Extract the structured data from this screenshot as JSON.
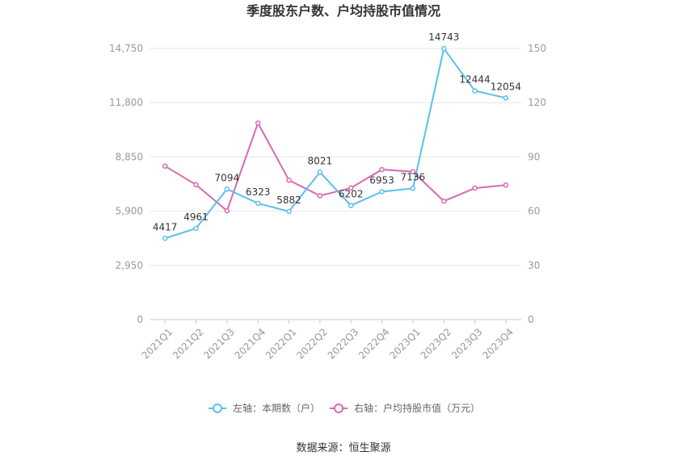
{
  "chart_data": {
    "type": "line",
    "title": "季度股东户数、户均持股市值情况",
    "categories": [
      "2021Q1",
      "2021Q2",
      "2021Q3",
      "2021Q4",
      "2022Q1",
      "2022Q2",
      "2022Q3",
      "2022Q4",
      "2023Q1",
      "2023Q2",
      "2023Q3",
      "2023Q4"
    ],
    "left_axis": {
      "min": 0,
      "max": 14750,
      "ticks": [
        "0",
        "2,950",
        "5,900",
        "8,850",
        "11,800",
        "14,750"
      ],
      "tick_values": [
        0,
        2950,
        5900,
        8850,
        11800,
        14750
      ]
    },
    "right_axis": {
      "min": 0,
      "max": 150,
      "ticks": [
        "0",
        "30",
        "60",
        "90",
        "120",
        "150"
      ],
      "tick_values": [
        0,
        30,
        60,
        90,
        120,
        150
      ]
    },
    "series": [
      {
        "name": "左轴：本期数（户）",
        "axis": "left",
        "color": "#5bc0eb",
        "values": [
          4417,
          4961,
          7094,
          6323,
          5882,
          8021,
          6202,
          6953,
          7136,
          14743,
          12444,
          12054
        ],
        "labels": [
          "4417",
          "4961",
          "7094",
          "6323",
          "5882",
          "8021",
          "6202",
          "6953",
          "7136",
          "14743",
          "12444",
          "12054"
        ]
      },
      {
        "name": "右轴：户均持股市值（万元）",
        "axis": "right",
        "color": "#d66bb1",
        "values": [
          84.9,
          74.6,
          60.2,
          108.7,
          77.1,
          68.5,
          72.8,
          83.0,
          81.8,
          65.5,
          72.7,
          74.4
        ]
      }
    ],
    "grid": true,
    "legend_position": "bottom"
  },
  "footer": {
    "source": "数据来源：恒生聚源"
  }
}
